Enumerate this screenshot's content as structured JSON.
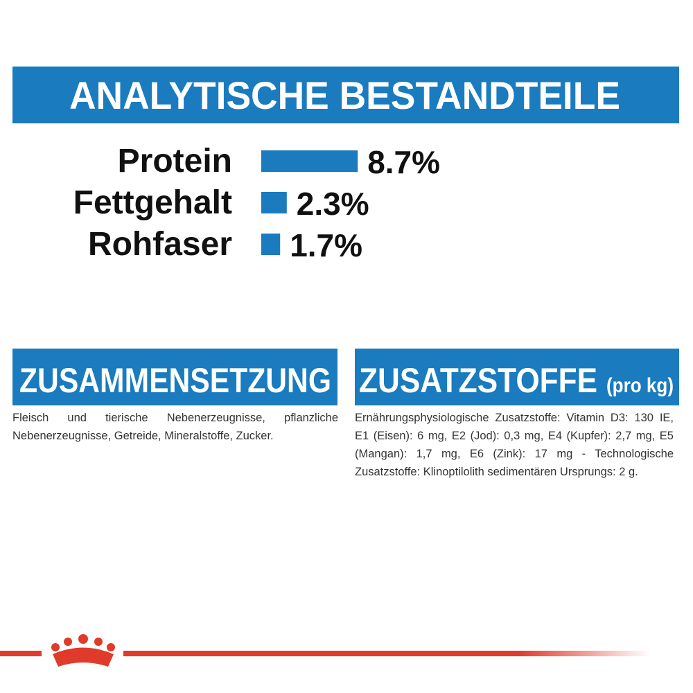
{
  "header": {
    "title": "ANALYTISCHE BESTANDTEILE"
  },
  "nutrients": {
    "categories": [
      "Protein",
      "Fettgehalt",
      "Rohfaser"
    ],
    "values": [
      8.7,
      2.3,
      1.7
    ],
    "value_labels": [
      "8.7%",
      "2.3%",
      "1.7%"
    ],
    "color": "#1a7bbf"
  },
  "composition": {
    "title": "ZUSAMMENSETZUNG",
    "text": "Fleisch und tierische Nebenerzeugnisse, pflanzliche Nebenerzeugnisse, Getreide, Mineralstoffe, Zucker."
  },
  "additives": {
    "title": "ZUSATZSTOFFE",
    "unit": "(pro kg)",
    "text": "Ernährungsphysiologische Zusatzstoffe: Vitamin D3: 130 IE, E1 (Eisen): 6 mg, E2 (Jod): 0,3 mg, E4 (Kupfer): 2,7 mg, E5 (Mangan): 1,7 mg, E6 (Zink): 17 mg - Technologische Zusatzstoffe: Klinoptilolith sedimentären Ursprungs: 2 g."
  }
}
